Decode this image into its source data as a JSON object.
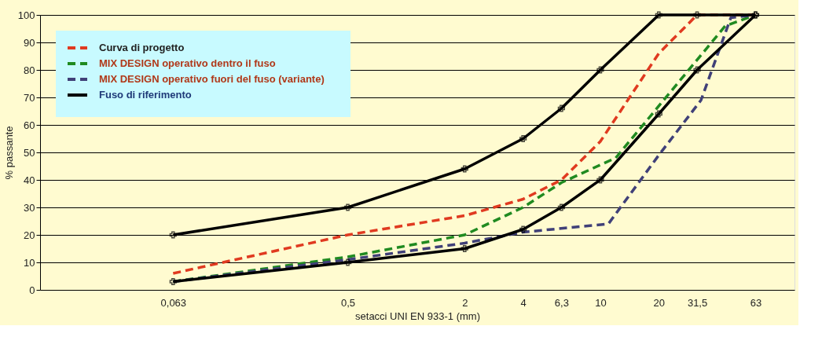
{
  "chart_data": {
    "type": "line",
    "xlabel": "setacci UNI EN 933-1 (mm)",
    "ylabel": "% passante",
    "log": "x",
    "grid": "y",
    "legend": "top left",
    "xlim": [
      0.013,
      100
    ],
    "xticks": [
      {
        "value": 0.063,
        "label": "0,063"
      },
      {
        "value": 0.5,
        "label": "0,5"
      },
      2,
      4,
      {
        "value": 6.3,
        "label": "6,3"
      },
      10,
      20,
      {
        "value": 31.5,
        "label": "31,5"
      },
      63
    ],
    "ylim": [
      0,
      100
    ],
    "yticks": [
      0,
      10,
      20,
      30,
      40,
      50,
      60,
      70,
      80,
      90,
      100
    ],
    "series": [
      {
        "name": "Curva di progetto",
        "color": "#e03a20",
        "line_style": "dashed",
        "marker": "none",
        "x": [
          0.063,
          0.5,
          2,
          4,
          6.3,
          10,
          20,
          31.5,
          63
        ],
        "values": [
          6,
          20,
          27,
          33,
          40,
          54,
          86,
          100,
          100
        ]
      },
      {
        "name": "MIX DESIGN operativo dentro il fuso",
        "color": "#208a20",
        "line_style": "dashed",
        "marker": "none",
        "x": [
          0.063,
          0.5,
          2,
          4,
          6.3,
          12,
          44,
          63
        ],
        "values": [
          3,
          12,
          20,
          30,
          39,
          48,
          96,
          100
        ]
      },
      {
        "name": "MIX DESIGN operativo fuori del fuso (variante)",
        "color": "#404078",
        "line_style": "dashed",
        "marker": "none",
        "x": [
          0.063,
          0.5,
          2,
          4,
          11,
          20,
          33,
          47,
          63
        ],
        "values": [
          3,
          11,
          17,
          21,
          24,
          49,
          69,
          99,
          100
        ]
      },
      {
        "name": "Fuso di riferimento",
        "color": "#000000",
        "line_style": "solid",
        "marker": "cross",
        "x": [
          0.063,
          0.5,
          2,
          4,
          6.3,
          10,
          20,
          31.5,
          63
        ],
        "values": [
          20,
          30,
          44,
          55,
          66,
          80,
          100,
          100,
          100
        ]
      },
      {
        "color": "#000000",
        "line_style": "solid",
        "marker": "cross",
        "x": [
          0.063,
          0.5,
          2,
          4,
          6.3,
          10,
          20,
          31.5,
          63
        ],
        "values": [
          3,
          10,
          15,
          22,
          30,
          40,
          64,
          80,
          100
        ]
      }
    ]
  }
}
